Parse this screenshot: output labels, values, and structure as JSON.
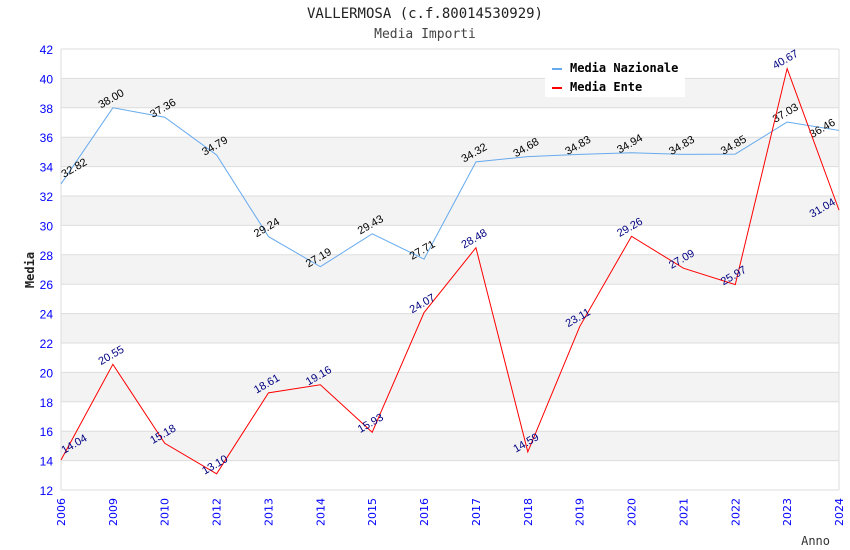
{
  "chart_data": {
    "type": "line",
    "title": "VALLERMOSA (c.f.80014530929)",
    "subtitle": "Media Importi",
    "xlabel": "Anno",
    "ylabel": "Media",
    "ylim": [
      12,
      42
    ],
    "yticks": [
      12,
      14,
      16,
      18,
      20,
      22,
      24,
      26,
      28,
      30,
      32,
      34,
      36,
      38,
      40,
      42
    ],
    "categories": [
      "2006",
      "2009",
      "2010",
      "2012",
      "2013",
      "2014",
      "2015",
      "2016",
      "2017",
      "2018",
      "2019",
      "2020",
      "2021",
      "2022",
      "2023",
      "2024"
    ],
    "legend_position": "top-right",
    "series": [
      {
        "name": "Media Nazionale",
        "color": "#66aaee",
        "label_color": "#000000",
        "values": [
          32.82,
          38.0,
          37.36,
          34.79,
          29.24,
          27.19,
          29.43,
          27.71,
          34.32,
          34.68,
          34.83,
          34.94,
          34.83,
          34.85,
          37.03,
          36.46
        ]
      },
      {
        "name": "Media Ente",
        "color": "#ff0000",
        "label_color": "#000080",
        "values": [
          14.04,
          20.55,
          15.18,
          13.1,
          18.61,
          19.16,
          15.93,
          24.07,
          28.48,
          14.59,
          23.11,
          29.26,
          27.09,
          25.97,
          40.67,
          31.04
        ]
      }
    ]
  }
}
